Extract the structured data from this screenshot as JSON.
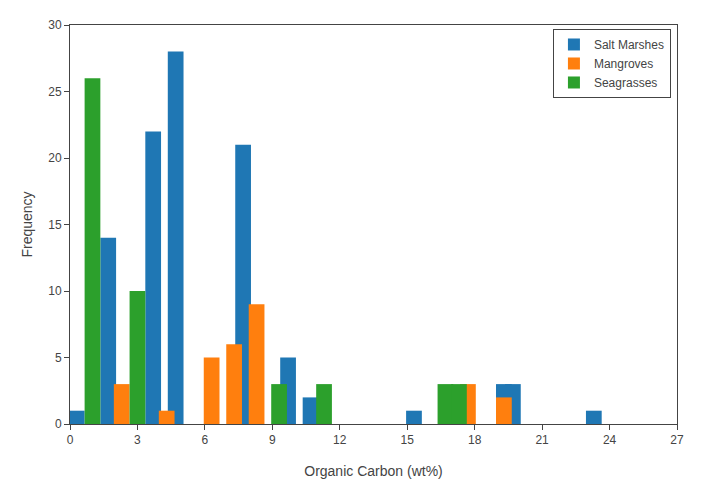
{
  "chart_data": {
    "type": "bar",
    "xlabel": "Organic Carbon (wt%)",
    "ylabel": "Frequency",
    "series": [
      {
        "name": "Salt Marshes",
        "x": [
          0.3,
          1.7,
          3.7,
          4.7,
          7.7,
          9.7,
          10.7,
          15.3,
          19.3,
          19.7,
          23.3
        ],
        "values": [
          1,
          14,
          22,
          28,
          21,
          5,
          2,
          1,
          3,
          3,
          1
        ]
      },
      {
        "name": "Mangroves",
        "x": [
          2.3,
          4.3,
          6.3,
          7.3,
          8.3,
          17.7,
          19.3
        ],
        "values": [
          3,
          1,
          5,
          6,
          9,
          3,
          2
        ]
      },
      {
        "name": "Seagrasses",
        "x": [
          1.0,
          3.0,
          9.3,
          11.3,
          16.7,
          17.3
        ],
        "values": [
          26,
          10,
          3,
          3,
          3,
          3
        ]
      }
    ],
    "xlim": [
      0,
      27
    ],
    "ylim": [
      0,
      30
    ],
    "xticks": [
      0,
      3,
      6,
      9,
      12,
      15,
      18,
      21,
      24,
      27
    ],
    "yticks": [
      0,
      5,
      10,
      15,
      20,
      25,
      30
    ],
    "grid": false,
    "legend": "upper right"
  }
}
